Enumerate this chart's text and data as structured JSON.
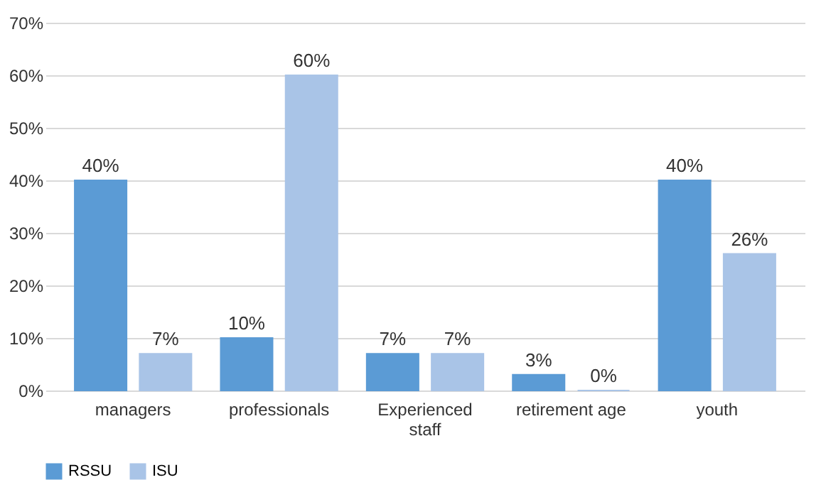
{
  "chart_data": {
    "type": "bar",
    "categories": [
      "managers",
      "professionals",
      "Experienced staff",
      "retirement age",
      "youth"
    ],
    "series": [
      {
        "name": "RSSU",
        "color": "#5b9bd5",
        "values": [
          40,
          10,
          7,
          3,
          40
        ],
        "value_labels": [
          "40%",
          "10%",
          "7%",
          "3%",
          "40%"
        ]
      },
      {
        "name": "ISU",
        "color": "#a9c4e7",
        "values": [
          7,
          60,
          7,
          0,
          26
        ],
        "value_labels": [
          "7%",
          "60%",
          "7%",
          "0%",
          "26%"
        ]
      }
    ],
    "ylim": [
      0,
      70
    ],
    "yticks": [
      {
        "value": 0,
        "label": "0%"
      },
      {
        "value": 10,
        "label": "10%"
      },
      {
        "value": 20,
        "label": "20%"
      },
      {
        "value": 30,
        "label": "30%"
      },
      {
        "value": 40,
        "label": "40%"
      },
      {
        "value": 50,
        "label": "50%"
      },
      {
        "value": 60,
        "label": "60%"
      },
      {
        "value": 70,
        "label": "70%"
      }
    ],
    "grid": "y",
    "legend": "bottom"
  }
}
